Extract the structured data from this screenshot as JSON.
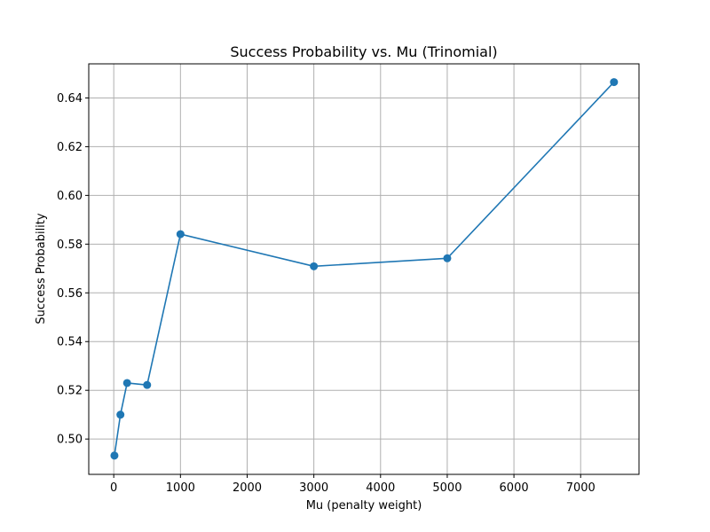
{
  "chart_data": {
    "type": "line",
    "title": "Success Probability vs. Mu (Trinomial)",
    "xlabel": "Mu (penalty weight)",
    "ylabel": "Success Probability",
    "xlim": [
      -375,
      7875
    ],
    "ylim": [
      0.4855,
      0.654
    ],
    "xticks": [
      0,
      1000,
      2000,
      3000,
      4000,
      5000,
      6000,
      7000
    ],
    "yticks": [
      0.5,
      0.52,
      0.54,
      0.56,
      0.58,
      0.6,
      0.62,
      0.64
    ],
    "ytick_labels": [
      "0.50",
      "0.52",
      "0.54",
      "0.56",
      "0.58",
      "0.60",
      "0.62",
      "0.64"
    ],
    "grid": true,
    "series": [
      {
        "color": "#1f77b4",
        "marker": "circle",
        "x": [
          10,
          100,
          200,
          500,
          1000,
          3000,
          5000,
          7500
        ],
        "y": [
          0.4932,
          0.51,
          0.523,
          0.5222,
          0.5841,
          0.5709,
          0.5742,
          0.6465
        ]
      }
    ]
  }
}
